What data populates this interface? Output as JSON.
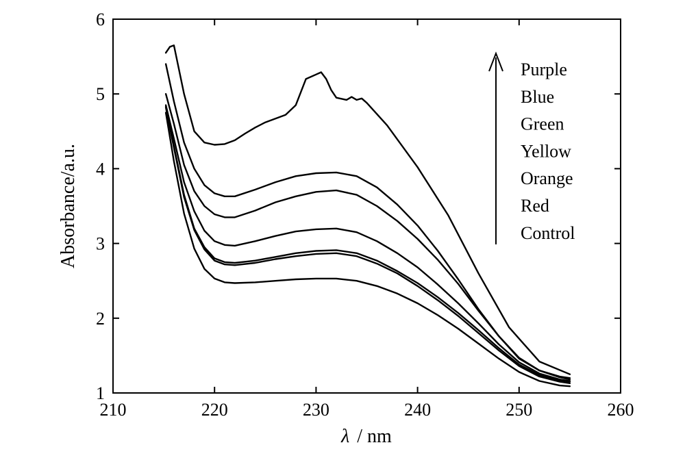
{
  "chart_data": {
    "type": "line",
    "xlabel_symbol": "λ",
    "xlabel_unit": "/ nm",
    "ylabel": "Absorbance/a.u.",
    "xlim": [
      210,
      260
    ],
    "ylim": [
      1,
      6
    ],
    "xticks": [
      210,
      220,
      230,
      240,
      250,
      260
    ],
    "yticks": [
      1,
      2,
      3,
      4,
      5,
      6
    ],
    "grid": false,
    "legend_position": "top-right",
    "legend_entries": [
      "Purple",
      "Blue",
      "Green",
      "Yellow",
      "Orange",
      "Red",
      "Control"
    ],
    "series": [
      {
        "name": "Purple",
        "x": [
          215.2,
          215.6,
          216.0,
          217,
          218,
          219,
          220,
          221,
          222,
          223,
          224,
          225,
          226,
          227,
          228,
          229,
          230,
          230.5,
          231,
          231.5,
          232,
          233,
          233.5,
          234,
          234.5,
          235,
          237,
          240,
          243,
          246,
          249,
          252,
          255
        ],
        "y": [
          5.55,
          5.63,
          5.65,
          5.0,
          4.5,
          4.35,
          4.32,
          4.33,
          4.38,
          4.47,
          4.55,
          4.62,
          4.67,
          4.72,
          4.85,
          5.2,
          5.26,
          5.29,
          5.2,
          5.05,
          4.95,
          4.92,
          4.96,
          4.92,
          4.94,
          4.88,
          4.58,
          4.02,
          3.38,
          2.6,
          1.88,
          1.42,
          1.25
        ]
      },
      {
        "name": "Blue",
        "x": [
          215.2,
          216,
          217,
          218,
          219,
          220,
          221,
          222,
          224,
          226,
          228,
          230,
          232,
          234,
          236,
          238,
          240,
          242,
          244,
          246,
          248,
          250,
          252,
          254,
          255
        ],
        "y": [
          5.4,
          4.9,
          4.35,
          4.0,
          3.78,
          3.67,
          3.63,
          3.63,
          3.72,
          3.82,
          3.9,
          3.94,
          3.95,
          3.9,
          3.75,
          3.52,
          3.24,
          2.9,
          2.52,
          2.12,
          1.76,
          1.46,
          1.3,
          1.22,
          1.2
        ]
      },
      {
        "name": "Green",
        "x": [
          215.2,
          216,
          217,
          218,
          219,
          220,
          221,
          222,
          224,
          226,
          228,
          230,
          232,
          234,
          236,
          238,
          240,
          242,
          244,
          246,
          248,
          250,
          252,
          254,
          255
        ],
        "y": [
          5.0,
          4.6,
          4.05,
          3.7,
          3.5,
          3.39,
          3.35,
          3.35,
          3.44,
          3.55,
          3.63,
          3.69,
          3.71,
          3.65,
          3.5,
          3.3,
          3.06,
          2.78,
          2.46,
          2.1,
          1.76,
          1.47,
          1.3,
          1.21,
          1.18
        ]
      },
      {
        "name": "Yellow",
        "x": [
          215.2,
          216,
          217,
          218,
          219,
          220,
          221,
          222,
          224,
          226,
          228,
          230,
          232,
          234,
          236,
          238,
          240,
          242,
          244,
          246,
          248,
          250,
          252,
          254,
          255
        ],
        "y": [
          4.85,
          4.4,
          3.82,
          3.43,
          3.17,
          3.03,
          2.98,
          2.97,
          3.03,
          3.1,
          3.16,
          3.19,
          3.2,
          3.15,
          3.03,
          2.87,
          2.68,
          2.45,
          2.2,
          1.93,
          1.65,
          1.41,
          1.26,
          1.18,
          1.16
        ]
      },
      {
        "name": "Orange",
        "x": [
          215.2,
          216,
          217,
          218,
          219,
          220,
          221,
          222,
          224,
          226,
          228,
          230,
          232,
          234,
          236,
          238,
          240,
          242,
          244,
          246,
          248,
          250,
          252,
          254,
          255
        ],
        "y": [
          4.83,
          4.3,
          3.65,
          3.2,
          2.95,
          2.8,
          2.75,
          2.74,
          2.77,
          2.82,
          2.87,
          2.9,
          2.91,
          2.87,
          2.77,
          2.63,
          2.47,
          2.28,
          2.07,
          1.84,
          1.6,
          1.38,
          1.24,
          1.17,
          1.15
        ]
      },
      {
        "name": "Red",
        "x": [
          215.2,
          216,
          217,
          218,
          219,
          220,
          221,
          222,
          224,
          226,
          228,
          230,
          232,
          234,
          236,
          238,
          240,
          242,
          244,
          246,
          248,
          250,
          252,
          254,
          255
        ],
        "y": [
          4.82,
          4.28,
          3.62,
          3.18,
          2.92,
          2.77,
          2.72,
          2.71,
          2.74,
          2.79,
          2.83,
          2.86,
          2.87,
          2.83,
          2.73,
          2.6,
          2.43,
          2.24,
          2.03,
          1.8,
          1.57,
          1.36,
          1.22,
          1.15,
          1.13
        ]
      },
      {
        "name": "Control",
        "x": [
          215.2,
          216,
          217,
          218,
          219,
          220,
          221,
          222,
          224,
          226,
          228,
          230,
          232,
          234,
          236,
          238,
          240,
          242,
          244,
          246,
          248,
          250,
          252,
          254,
          255
        ],
        "y": [
          4.75,
          4.1,
          3.4,
          2.93,
          2.66,
          2.53,
          2.48,
          2.47,
          2.48,
          2.5,
          2.52,
          2.53,
          2.53,
          2.5,
          2.43,
          2.33,
          2.2,
          2.04,
          1.86,
          1.66,
          1.46,
          1.28,
          1.16,
          1.1,
          1.09
        ]
      }
    ]
  }
}
